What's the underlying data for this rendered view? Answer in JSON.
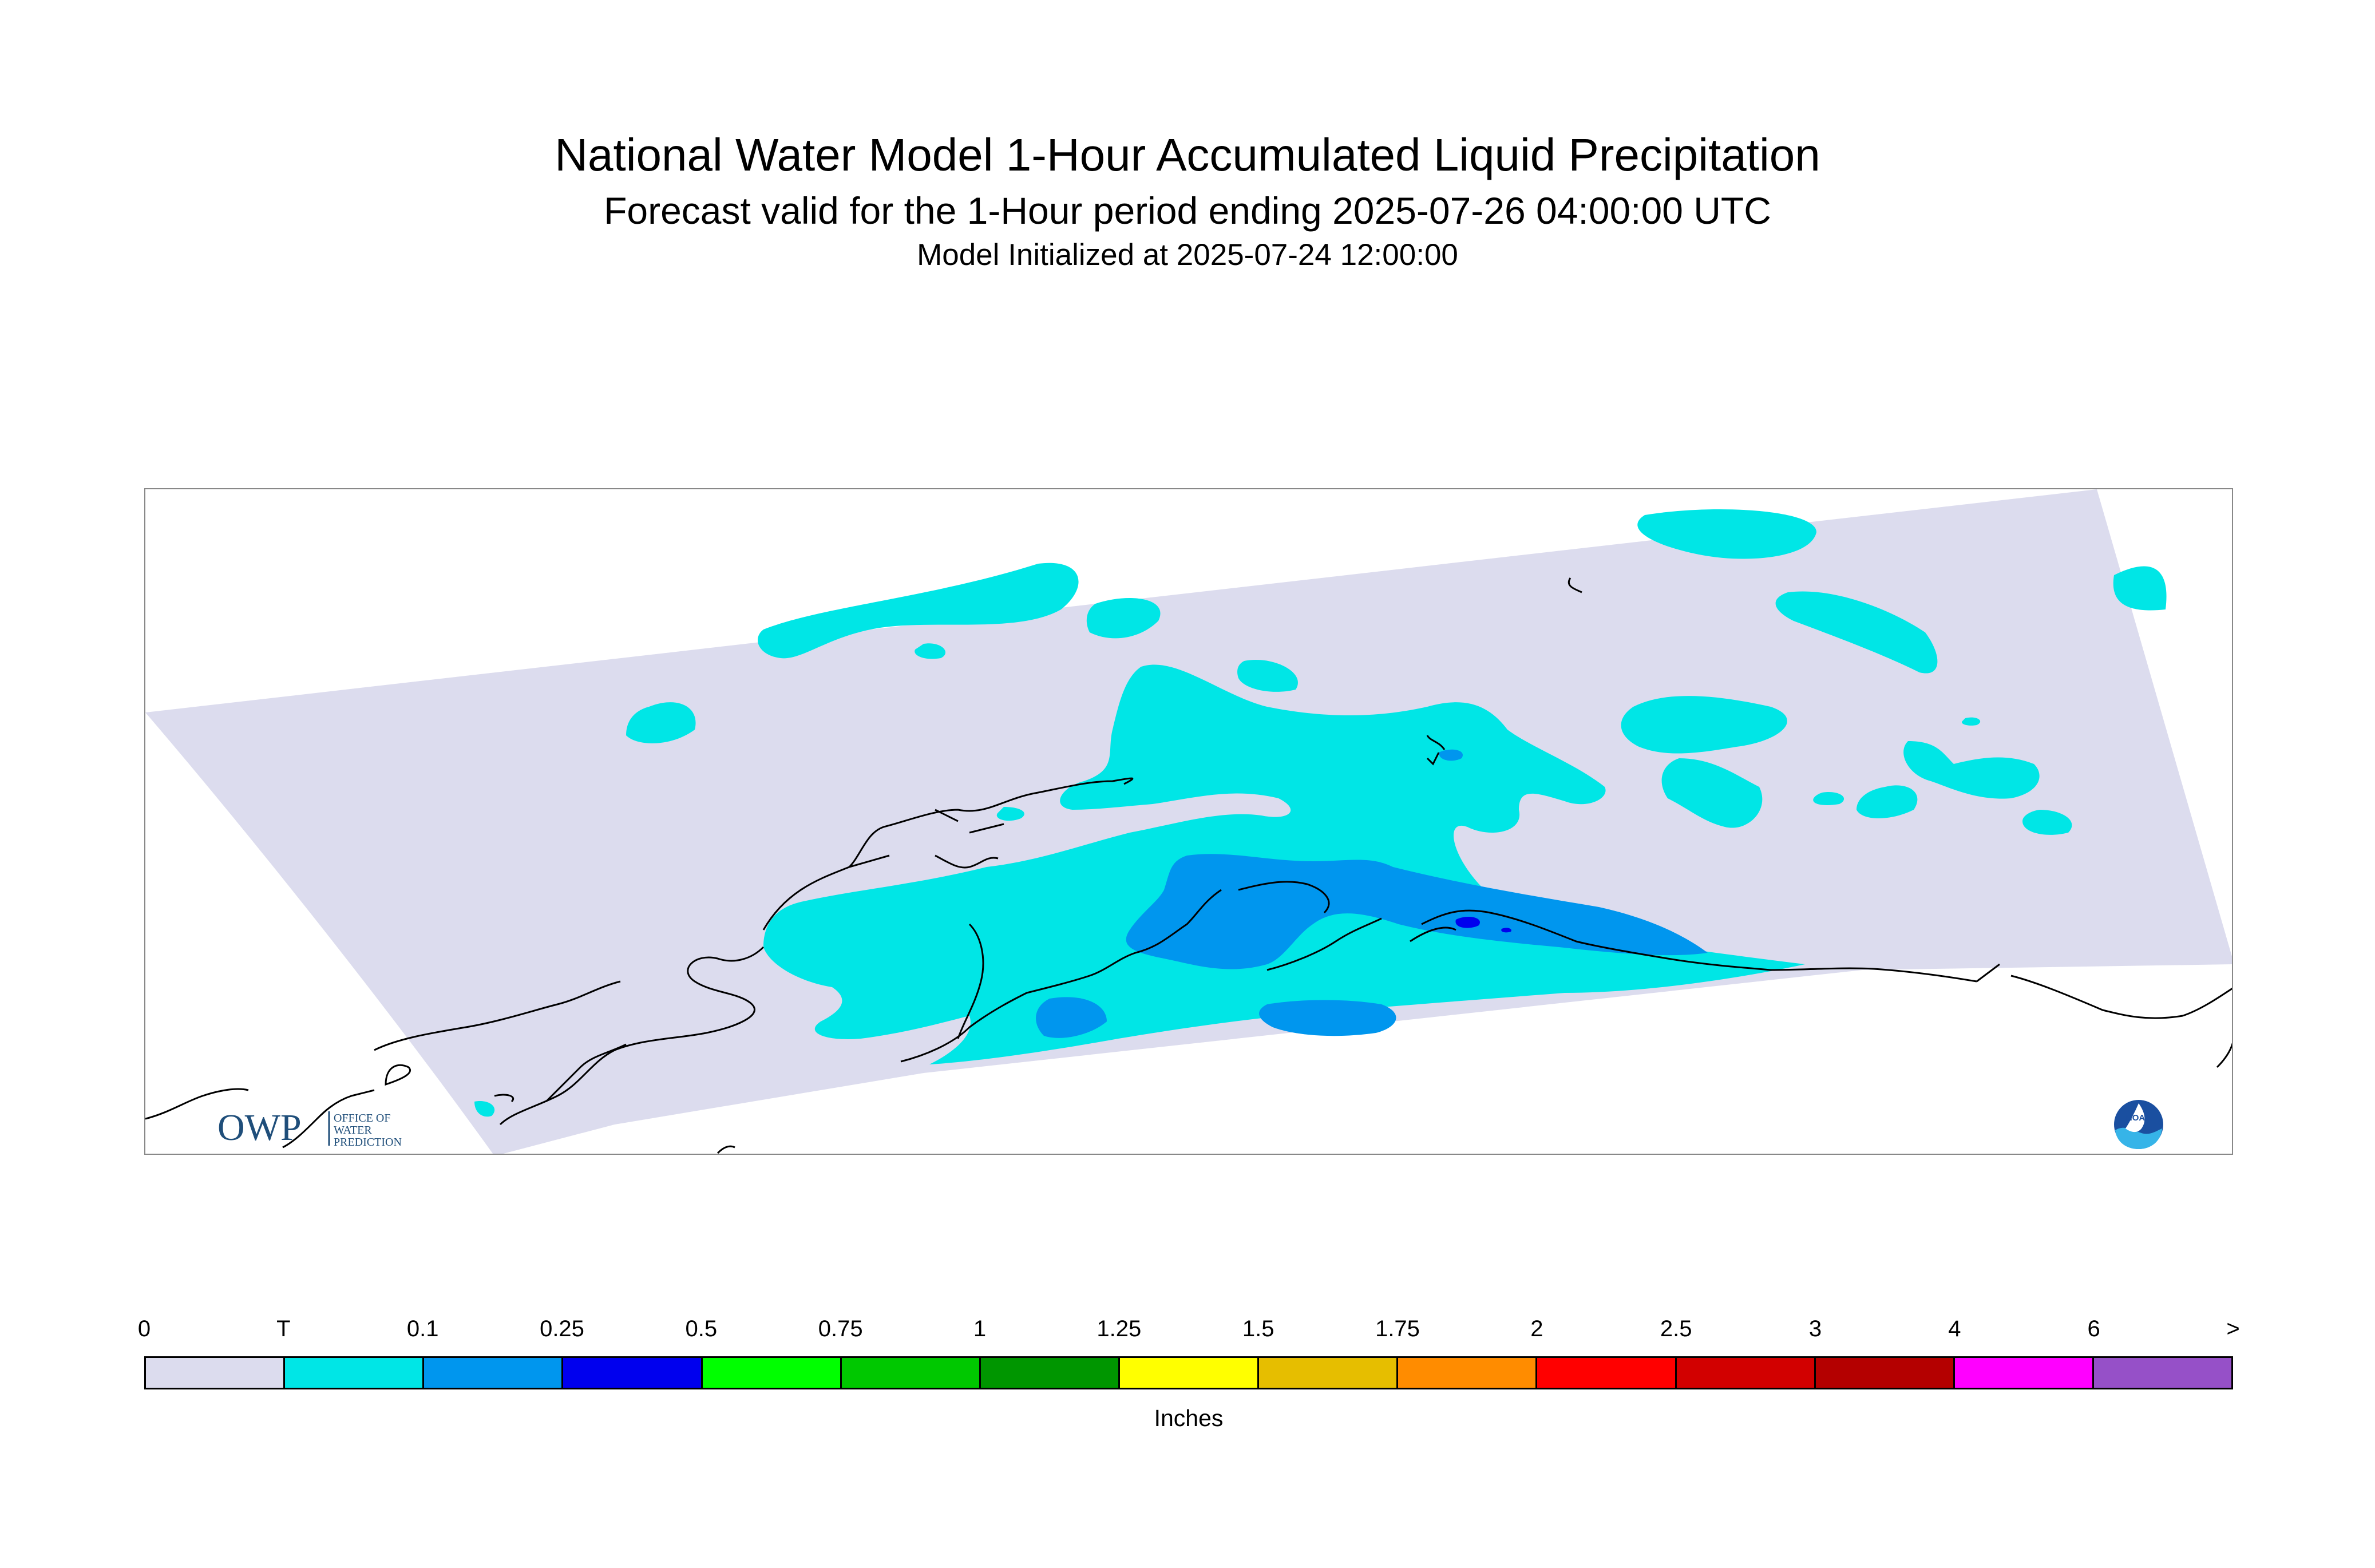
{
  "header": {
    "title": "National Water Model 1-Hour Accumulated Liquid Precipitation",
    "subtitle": "Forecast valid for the 1-Hour period ending 2025-07-26 04:00:00 UTC",
    "init_line": "Model Initialized at 2025-07-24 12:00:00"
  },
  "map": {
    "domain_fill_color": "#dcdcee",
    "coastline_color": "#000000",
    "precip_levels": [
      {
        "name": "T",
        "color": "#00e6e6"
      },
      {
        "name": "0.1",
        "color": "#0096ee"
      },
      {
        "name": "0.25",
        "color": "#0000ee"
      }
    ]
  },
  "logos": {
    "owp": {
      "mark": "OWP",
      "line1": "OFFICE OF",
      "line2": "WATER",
      "line3": "PREDICTION"
    },
    "noaa": {
      "mark": "NOAA"
    }
  },
  "legend": {
    "units": "Inches",
    "ticks": [
      "0",
      "T",
      "0.1",
      "0.25",
      "0.5",
      "0.75",
      "1",
      "1.25",
      "1.5",
      "1.75",
      "2",
      "2.5",
      "3",
      "4",
      "6",
      ">"
    ],
    "colors": [
      "#dcdcee",
      "#00e6e6",
      "#0096ee",
      "#0000ee",
      "#00ff00",
      "#00c800",
      "#009600",
      "#ffff00",
      "#e6be00",
      "#ff8c00",
      "#ff0000",
      "#d20000",
      "#b40000",
      "#ff00ff",
      "#9650c8"
    ]
  }
}
